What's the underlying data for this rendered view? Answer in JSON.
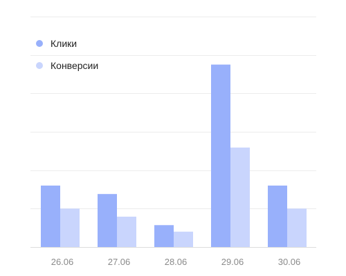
{
  "chart_data": {
    "type": "bar",
    "categories": [
      "26.06",
      "27.06",
      "28.06",
      "29.06",
      "30.06"
    ],
    "series": [
      {
        "name": "Клики",
        "values": [
          16,
          13.8,
          5.7,
          47.5,
          16
        ],
        "color": "#98b0fb"
      },
      {
        "name": "Конверсии",
        "values": [
          10,
          7.9,
          4,
          25.9,
          10
        ],
        "color": "#c9d5fd"
      }
    ],
    "ylim": [
      0,
      60
    ],
    "grid": true,
    "legend_position": "top-left"
  }
}
